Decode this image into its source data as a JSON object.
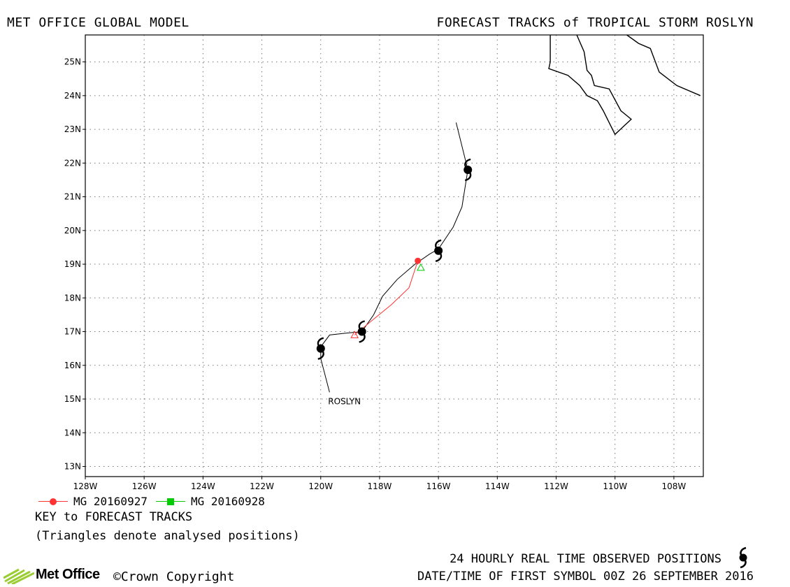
{
  "header": {
    "left_title": "MET OFFICE GLOBAL MODEL",
    "right_title": "FORECAST TRACKS of TROPICAL STORM ROSLYN"
  },
  "map": {
    "lon_range": [
      -128,
      -107
    ],
    "lat_range": [
      12.7,
      25.8
    ],
    "lon_ticks": [
      -128,
      -126,
      -124,
      -122,
      -120,
      -118,
      -116,
      -114,
      -112,
      -110,
      -108
    ],
    "lon_labels": [
      "128W",
      "126W",
      "124W",
      "122W",
      "120W",
      "118W",
      "116W",
      "114W",
      "112W",
      "110W",
      "108W"
    ],
    "lat_ticks": [
      13,
      14,
      15,
      16,
      17,
      18,
      19,
      20,
      21,
      22,
      23,
      24,
      25
    ],
    "lat_labels": [
      "13N",
      "14N",
      "15N",
      "16N",
      "17N",
      "18N",
      "19N",
      "20N",
      "21N",
      "22N",
      "23N",
      "24N",
      "25N"
    ],
    "gridlines": "dotted",
    "storm_label": "ROSLYN",
    "observed_track": [
      [
        -119.7,
        15.2
      ],
      [
        -120.0,
        16.2
      ],
      [
        -120.0,
        16.55
      ],
      [
        -119.7,
        16.9
      ],
      [
        -119.2,
        16.95
      ],
      [
        -118.6,
        17.0
      ],
      [
        -118.2,
        17.5
      ],
      [
        -117.9,
        18.05
      ],
      [
        -117.4,
        18.55
      ],
      [
        -116.8,
        19.0
      ],
      [
        -116.3,
        19.3
      ],
      [
        -116.0,
        19.45
      ],
      [
        -115.5,
        20.1
      ],
      [
        -115.2,
        20.7
      ],
      [
        -115.0,
        21.8
      ],
      [
        -115.4,
        23.2
      ]
    ],
    "observed_symbols": [
      [
        -120.0,
        16.5
      ],
      [
        -118.6,
        17.0
      ],
      [
        -116.0,
        19.4
      ],
      [
        -115.0,
        21.8
      ]
    ],
    "forecast_tracks": [
      {
        "name": "MG 20160927",
        "color": "#ff3333",
        "marker": "circle",
        "points": [
          [
            -118.85,
            16.9
          ],
          [
            -118.3,
            17.3
          ],
          [
            -117.6,
            17.8
          ],
          [
            -117.0,
            18.3
          ],
          [
            -116.7,
            19.1
          ]
        ],
        "analysed": [
          -118.85,
          16.9
        ]
      },
      {
        "name": "MG 20160928",
        "color": "#00cc00",
        "marker": "square",
        "points": [
          [
            -116.6,
            18.9
          ]
        ],
        "analysed": [
          -116.6,
          18.9
        ]
      }
    ],
    "coastline_segments": [
      [
        [
          -112.2,
          25.8
        ],
        [
          -112.2,
          25.0
        ],
        [
          -112.25,
          24.8
        ],
        [
          -111.6,
          24.6
        ],
        [
          -111.2,
          24.3
        ],
        [
          -110.95,
          24.0
        ],
        [
          -110.6,
          23.85
        ],
        [
          -110.4,
          23.55
        ],
        [
          -110.0,
          22.85
        ],
        [
          -109.45,
          23.3
        ],
        [
          -109.8,
          23.55
        ],
        [
          -110.2,
          24.2
        ],
        [
          -110.7,
          24.3
        ],
        [
          -110.8,
          24.6
        ],
        [
          -110.95,
          24.75
        ],
        [
          -111.05,
          25.3
        ],
        [
          -111.3,
          25.8
        ]
      ],
      [
        [
          -109.6,
          25.8
        ],
        [
          -109.2,
          25.55
        ],
        [
          -108.8,
          25.4
        ],
        [
          -108.5,
          24.7
        ],
        [
          -107.9,
          24.3
        ],
        [
          -107.1,
          24.0
        ]
      ]
    ]
  },
  "key": {
    "items": [
      {
        "label": "MG 20160927",
        "color": "#ff3333"
      },
      {
        "label": "MG 20160928",
        "color": "#00cc00"
      }
    ],
    "title": "KEY to FORECAST TRACKS",
    "note": "(Triangles denote analysed positions)"
  },
  "footer": {
    "observed_note": "24 HOURLY REAL TIME OBSERVED POSITIONS",
    "first_symbol": "DATE/TIME OF FIRST SYMBOL 00Z 26 SEPTEMBER 2016",
    "logo_text": "Met Office",
    "copyright": "©Crown Copyright"
  }
}
